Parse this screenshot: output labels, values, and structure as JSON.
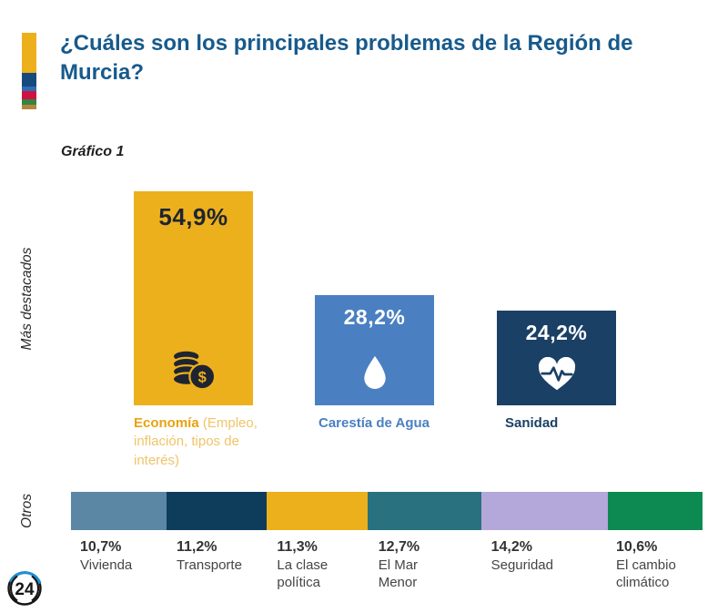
{
  "header": {
    "title": "¿Cuáles son los principales problemas de la Región de Murcia?",
    "accent_colors": [
      "#ecb01c",
      "#16497c",
      "#2e6db4",
      "#d01243",
      "#37823f",
      "#b3873d"
    ]
  },
  "chart_label": "Gráfico 1",
  "section_labels": {
    "featured": "Más destacados",
    "others": "Otros"
  },
  "chart_data": {
    "type": "bar",
    "title": "¿Cuáles son los principales problemas de la Región de Murcia?",
    "unit": "%",
    "featured": [
      {
        "label": "Economía",
        "sublabel": "(Empleo, inflación, tipos de interés)",
        "value": 54.9,
        "display": "54,9%",
        "color": "#ecb01c",
        "icon": "coins-icon"
      },
      {
        "label": "Carestía de Agua",
        "value": 28.2,
        "display": "28,2%",
        "color": "#4a80c1",
        "icon": "water-drop-icon"
      },
      {
        "label": "Sanidad",
        "value": 24.2,
        "display": "24,2%",
        "color": "#1b4066",
        "icon": "heartbeat-icon"
      }
    ],
    "others": [
      {
        "label": "Vivienda",
        "value": 10.7,
        "display": "10,7%",
        "color": "#5b87a5"
      },
      {
        "label": "Transporte",
        "value": 11.2,
        "display": "11,2%",
        "color": "#0e3d5c"
      },
      {
        "label": "La clase política",
        "value": 11.3,
        "display": "11,3%",
        "color": "#ecb01c"
      },
      {
        "label": "El Mar Menor",
        "value": 12.7,
        "display": "12,7%",
        "color": "#2a7180"
      },
      {
        "label": "Seguridad",
        "value": 14.2,
        "display": "14,2%",
        "color": "#b4a7d9"
      },
      {
        "label": "El cambio climático",
        "value": 10.6,
        "display": "10,6%",
        "color": "#0d8a51"
      }
    ]
  },
  "logo": {
    "text": "24"
  }
}
